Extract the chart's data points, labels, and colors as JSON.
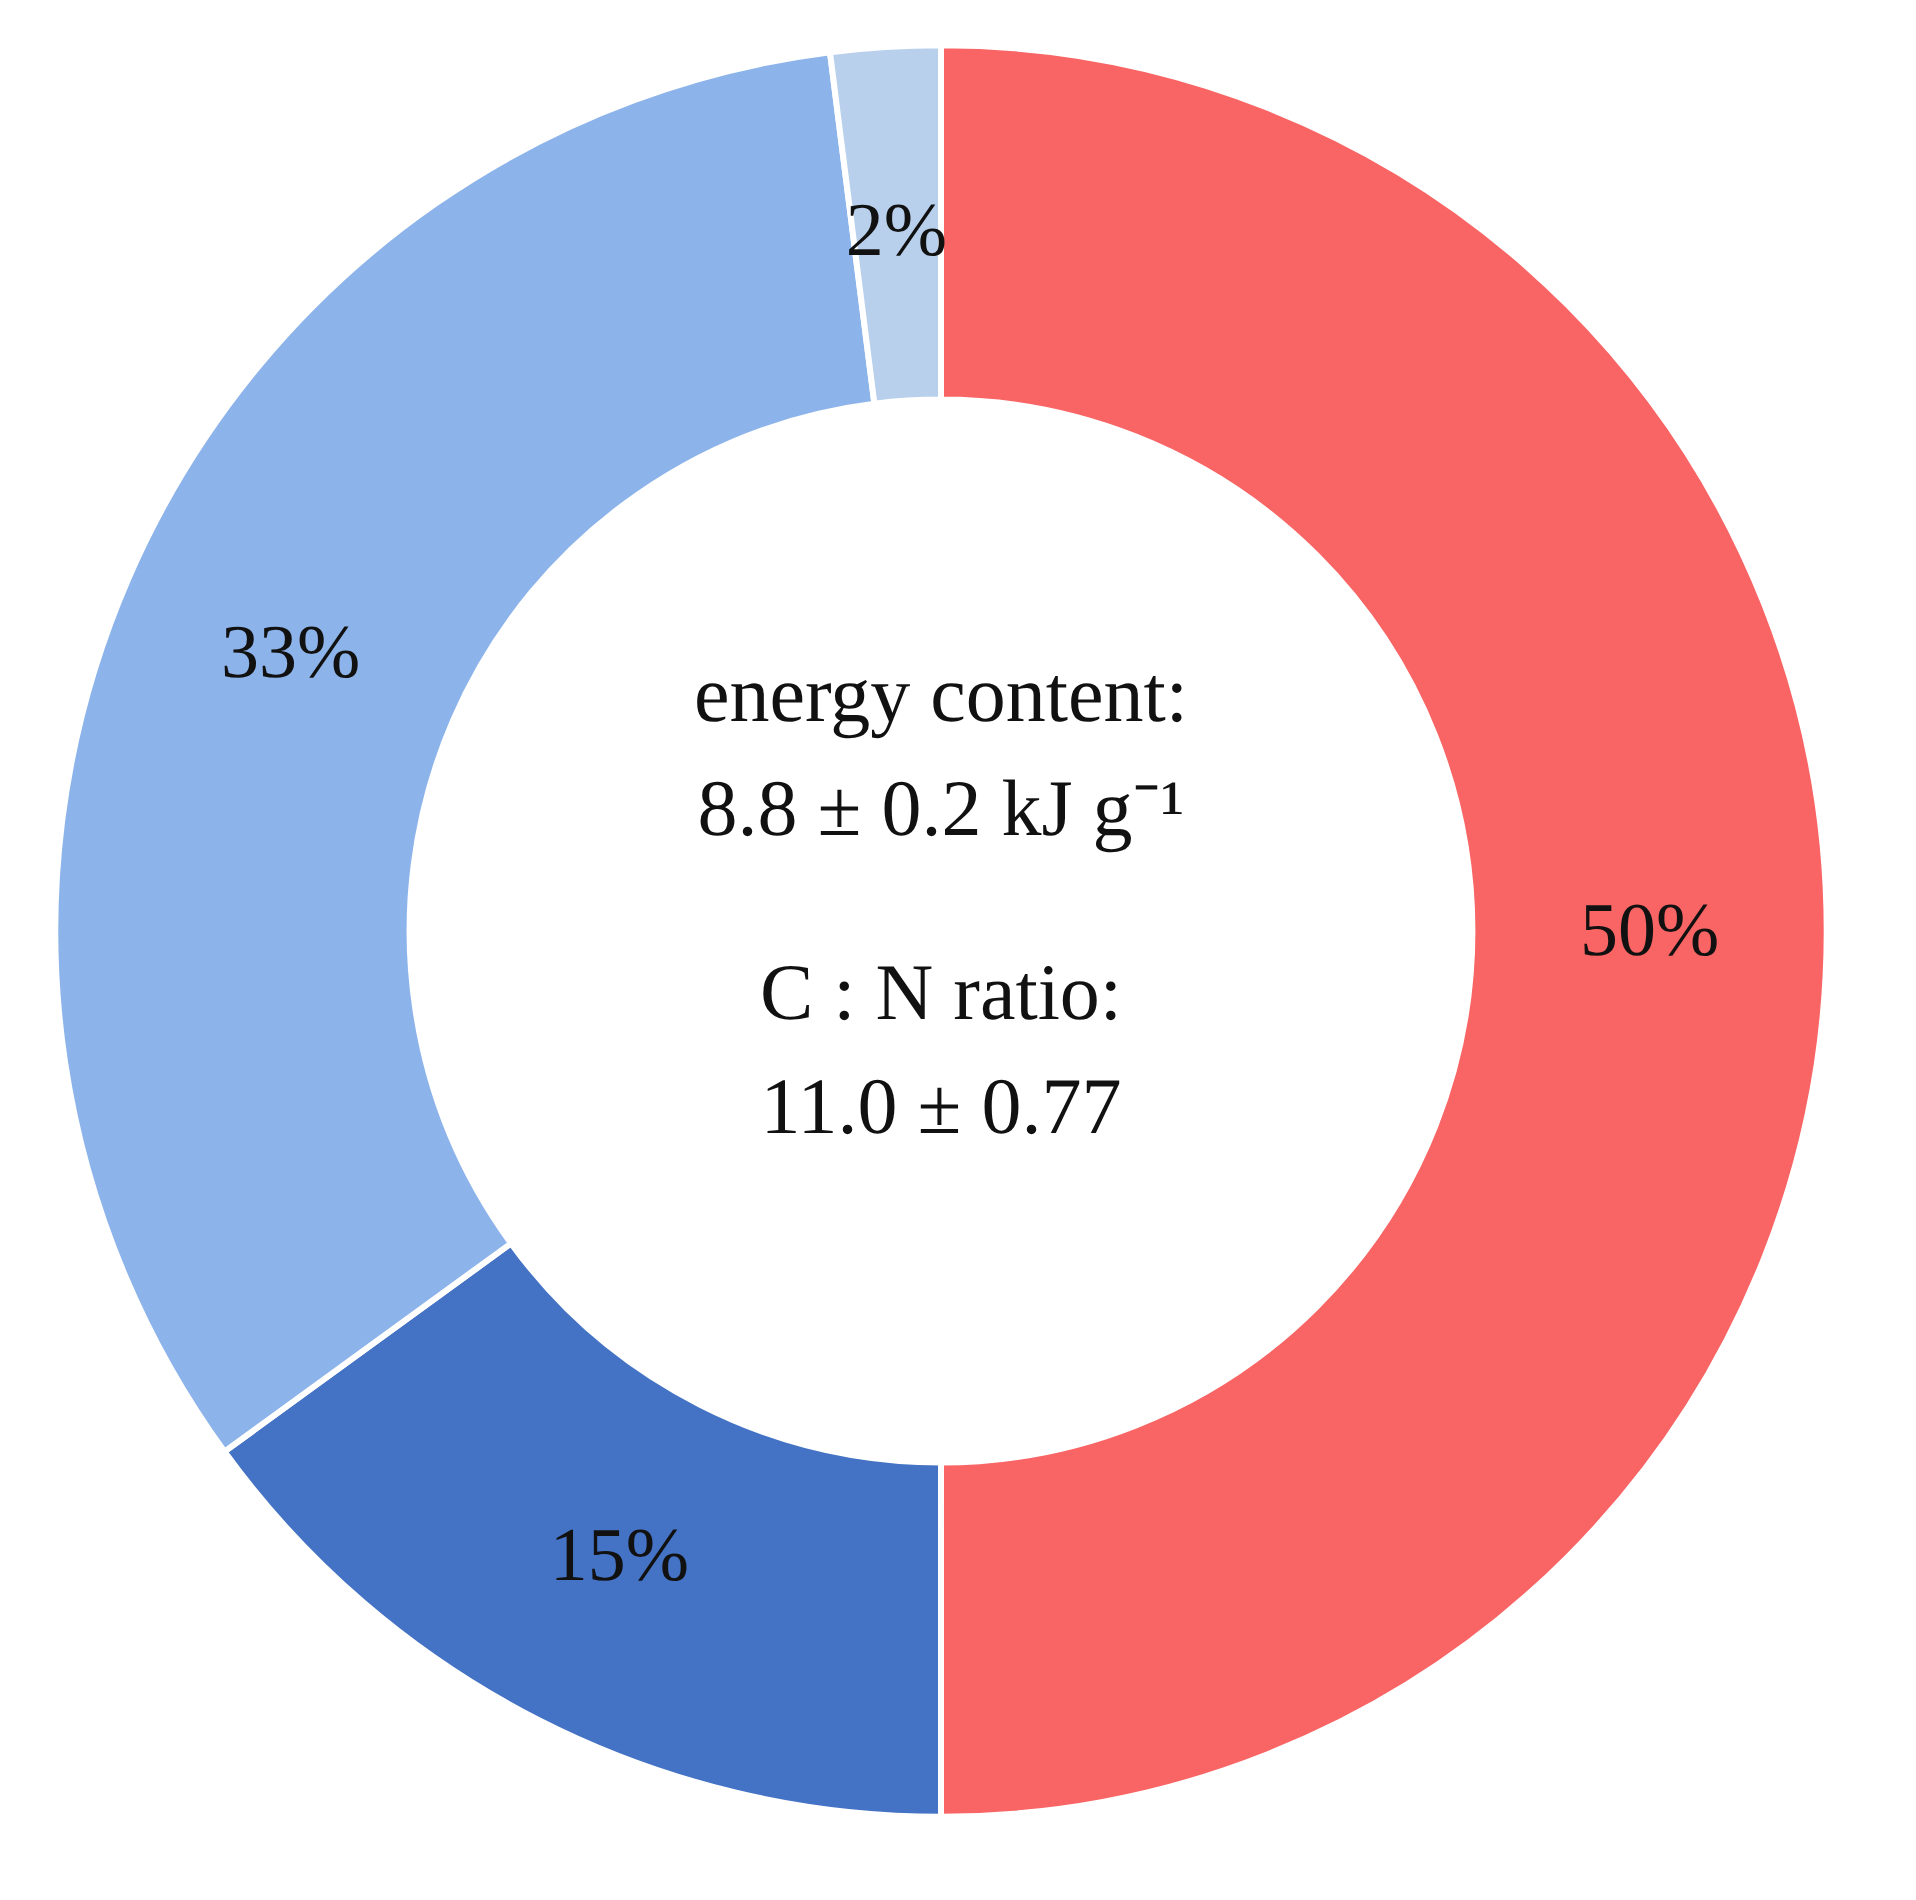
{
  "chart_data": {
    "type": "donut",
    "categories": [
      null,
      null,
      null,
      null
    ],
    "values": [
      50,
      15,
      33,
      2
    ],
    "colors": [
      "#f96464",
      "#4472c4",
      "#8db4ea",
      "#b8d0eb"
    ],
    "value_labels": [
      "50%",
      "15%",
      "33%",
      "2%"
    ],
    "annotations": [
      "energy content:",
      "8.8 ± 0.2 kJ g⁻¹",
      "C : N ratio:",
      "11.0 ± 0.77"
    ]
  }
}
